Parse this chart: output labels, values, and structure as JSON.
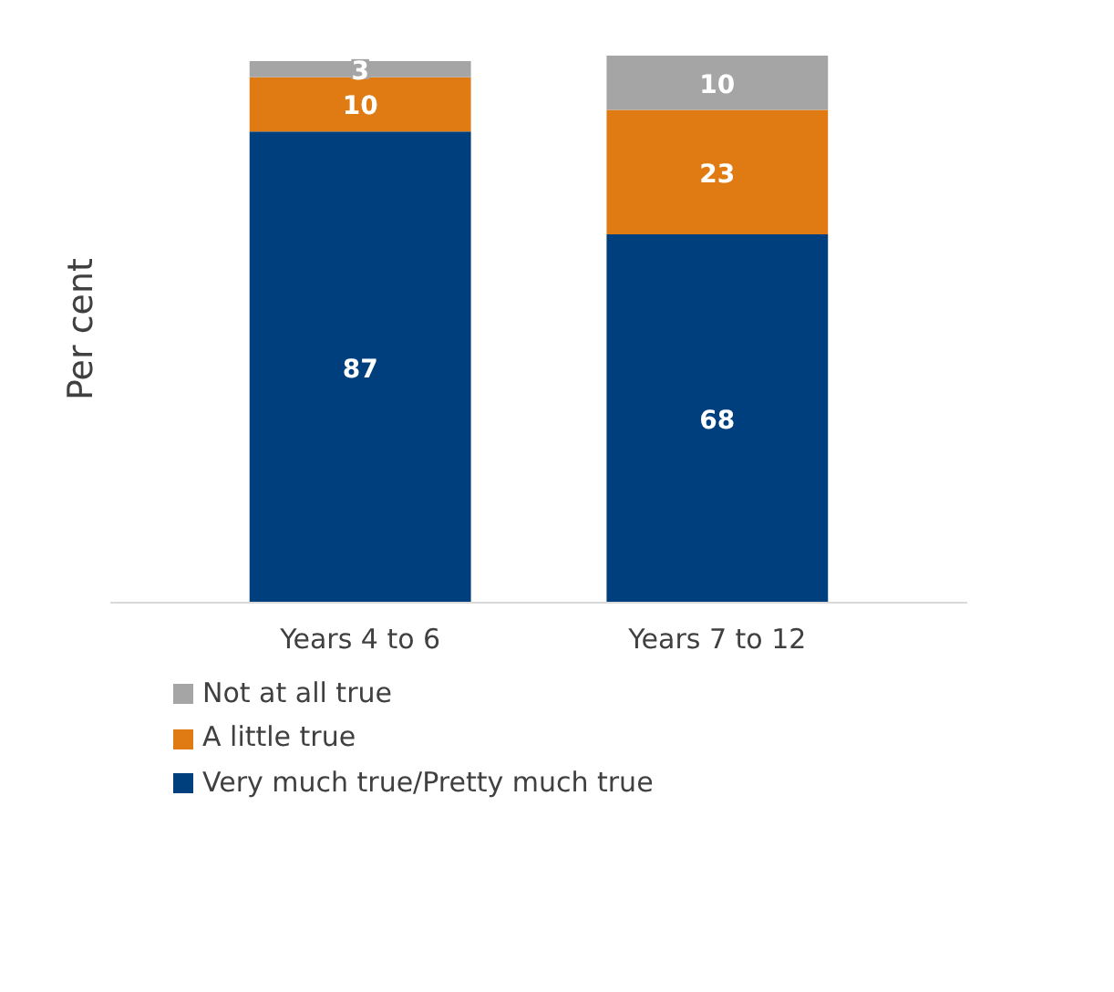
{
  "chart_data": {
    "type": "bar",
    "stacked": true,
    "ylabel": "Per cent",
    "categories": [
      "Years 4 to 6",
      "Years 7 to 12"
    ],
    "series": [
      {
        "name": "Very much true/Pretty much true",
        "color": "#003f7d",
        "values": [
          87,
          68
        ]
      },
      {
        "name": "A little true",
        "color": "#e07b14",
        "values": [
          10,
          23
        ]
      },
      {
        "name": "Not at all true",
        "color": "#a5a5a5",
        "values": [
          3,
          10
        ]
      }
    ],
    "data_labels": true,
    "legend": "bottom"
  }
}
